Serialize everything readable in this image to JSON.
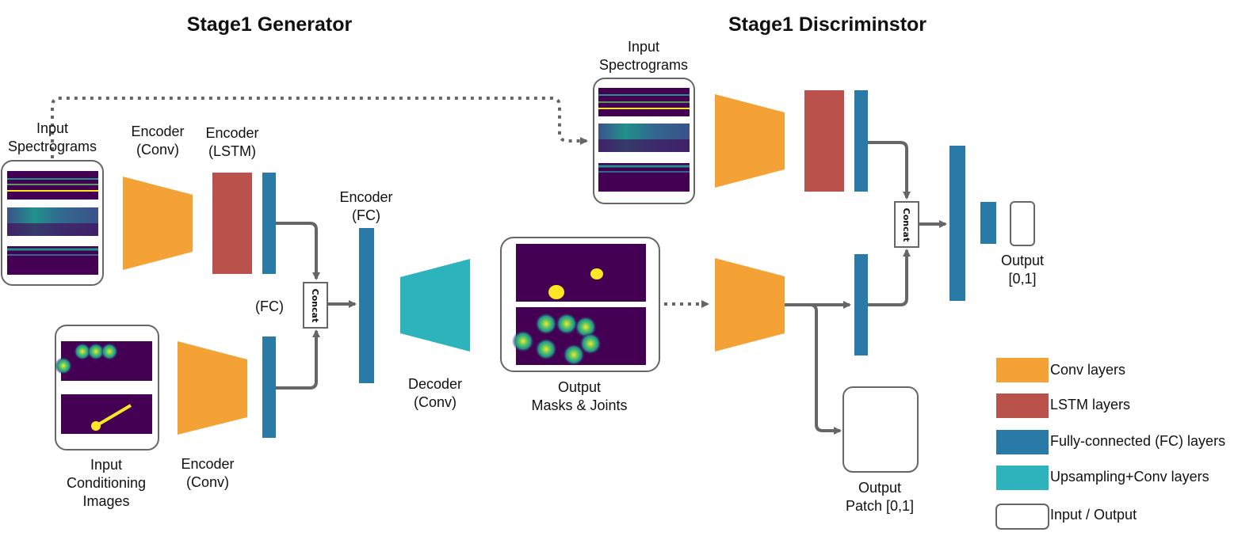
{
  "titles": {
    "generator": "Stage1 Generator",
    "discriminator": "Stage1 Discriminstor"
  },
  "labels": {
    "gen_input_spec": "Input\nSpectrograms",
    "gen_enc_conv": "Encoder\n(Conv)",
    "gen_enc_lstm": "Encoder\n(LSTM)",
    "gen_fc_small": "(FC)",
    "gen_enc_fc": "Encoder\n(FC)",
    "gen_input_cond": "Input\nConditioning\nImages",
    "gen_cond_enc_conv": "Encoder\n(Conv)",
    "gen_decoder": "Decoder\n(Conv)",
    "gen_output": "Output\nMasks & Joints",
    "disc_input_spec": "Input\nSpectrograms",
    "disc_output": "Output\n[0,1]",
    "disc_patch": "Output\nPatch [0,1]",
    "concat": "Concat"
  },
  "legend": [
    {
      "label": "Conv layers",
      "color": "#f4a236",
      "kind": "fill"
    },
    {
      "label": "LSTM layers",
      "color": "#b8524a",
      "kind": "fill"
    },
    {
      "label": "Fully-connected (FC) layers",
      "color": "#2a7aa7",
      "kind": "fill"
    },
    {
      "label": "Upsampling+Conv layers",
      "color": "#2cb3bb",
      "kind": "fill"
    },
    {
      "label": "Input / Output",
      "color": "#ffffff",
      "kind": "outline"
    }
  ],
  "colors": {
    "conv": "#f4a236",
    "lstm": "#b8524a",
    "fc": "#2a7aa7",
    "upsample": "#2cb3bb",
    "arrow": "#666666",
    "viridis_dark": "#440154",
    "viridis_yellow": "#fde725"
  }
}
